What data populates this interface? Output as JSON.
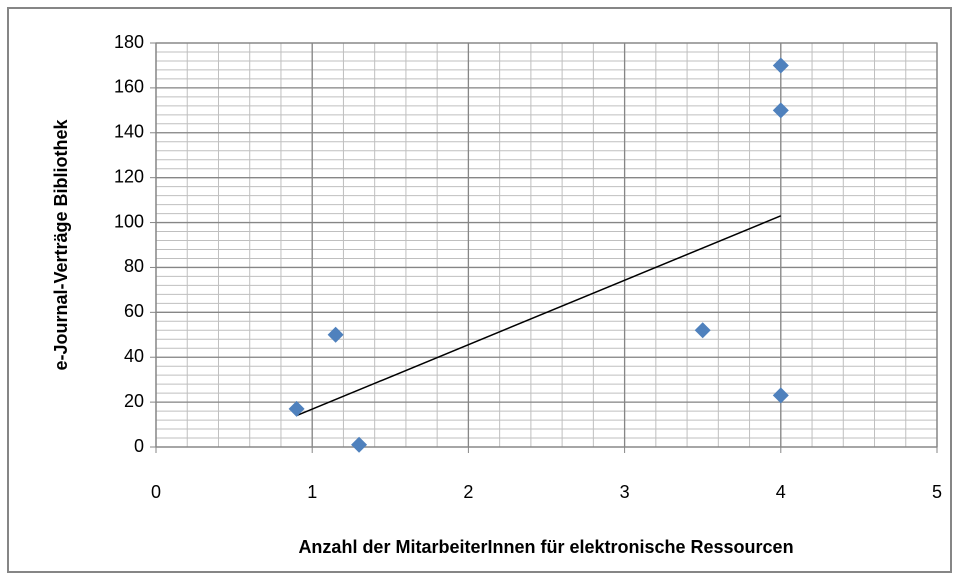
{
  "chart_data": {
    "type": "scatter",
    "x_label": "Anzahl der MitarbeiterInnen für elektronische Ressourcen",
    "y_label": "e-Journal-Verträge Bibliothek",
    "series": [
      {
        "color": "#4f81bd",
        "x": [
          0.9,
          1.15,
          1.3,
          3.5,
          4,
          4,
          4
        ],
        "values": [
          17,
          50,
          1,
          52,
          23,
          150,
          170
        ]
      }
    ],
    "trend_line": {
      "color": "#000000",
      "x": [
        0.9,
        4
      ],
      "values": [
        14,
        103
      ]
    },
    "xlim": [
      0,
      5
    ],
    "xticks": [
      0,
      1,
      2,
      3,
      4,
      5
    ],
    "ylim": [
      0,
      180
    ],
    "yticks": [
      0,
      20,
      40,
      60,
      80,
      100,
      120,
      140,
      160,
      180
    ],
    "grid": true,
    "minor_grid": {
      "x_step": 0.2,
      "y_step": 4
    }
  }
}
